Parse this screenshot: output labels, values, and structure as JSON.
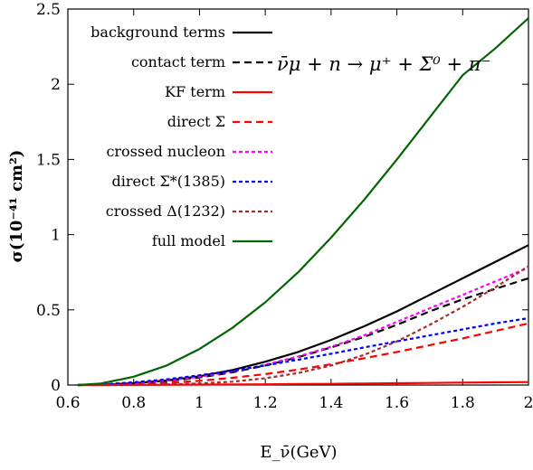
{
  "chart_data": {
    "type": "line",
    "reaction": "ν̄μ + n → μ⁺ + Σ⁰ + π⁻",
    "xlabel": "E_ν̄(GeV)",
    "ylabel": "σ(10⁻⁴¹ cm²)",
    "xlim": [
      0.6,
      2.0
    ],
    "ylim": [
      0,
      2.5
    ],
    "xticks": [
      "0.6",
      "0.8",
      "1",
      "1.2",
      "1.4",
      "1.6",
      "1.8",
      "2"
    ],
    "yticks": [
      "0",
      "0.5",
      "1",
      "1.5",
      "2",
      "2.5"
    ],
    "grid": false,
    "legend_position": "top-left",
    "x": [
      0.63,
      0.7,
      0.8,
      0.9,
      1.0,
      1.1,
      1.2,
      1.3,
      1.4,
      1.5,
      1.6,
      1.7,
      1.8,
      1.9,
      2.0
    ],
    "series": [
      {
        "name": "background terms",
        "color": "#000000",
        "dash": "solid",
        "values": [
          0.0,
          0.002,
          0.012,
          0.03,
          0.058,
          0.1,
          0.155,
          0.22,
          0.3,
          0.39,
          0.49,
          0.6,
          0.71,
          0.82,
          0.93
        ]
      },
      {
        "name": "contact term",
        "color": "#000000",
        "dash": "dashed",
        "values": [
          0.0,
          0.002,
          0.01,
          0.026,
          0.05,
          0.085,
          0.13,
          0.185,
          0.25,
          0.32,
          0.4,
          0.49,
          0.57,
          0.64,
          0.71
        ]
      },
      {
        "name": "KF term",
        "color": "#ff0000",
        "dash": "solid",
        "values": [
          0.0,
          0.0,
          0.001,
          0.002,
          0.003,
          0.004,
          0.005,
          0.007,
          0.008,
          0.01,
          0.012,
          0.014,
          0.016,
          0.018,
          0.02
        ]
      },
      {
        "name": "direct Σ",
        "color": "#ff0000",
        "dash": "dashed",
        "values": [
          0.0,
          0.001,
          0.005,
          0.013,
          0.028,
          0.048,
          0.073,
          0.103,
          0.138,
          0.178,
          0.22,
          0.265,
          0.31,
          0.36,
          0.41
        ]
      },
      {
        "name": "crossed nucleon",
        "color": "#ff00ff",
        "dash": "dotted",
        "values": [
          0.0,
          0.002,
          0.012,
          0.03,
          0.055,
          0.09,
          0.135,
          0.19,
          0.255,
          0.33,
          0.42,
          0.51,
          0.6,
          0.69,
          0.78
        ]
      },
      {
        "name": "direct Σ*(1385)",
        "color": "#0000ff",
        "dash": "dotted",
        "values": [
          0.0,
          0.004,
          0.018,
          0.038,
          0.065,
          0.095,
          0.13,
          0.168,
          0.208,
          0.25,
          0.29,
          0.33,
          0.37,
          0.41,
          0.445
        ]
      },
      {
        "name": "crossed Δ(1232)",
        "color": "#a52a2a",
        "dash": "dotted",
        "values": [
          0.0,
          0.0,
          0.001,
          0.004,
          0.01,
          0.022,
          0.045,
          0.08,
          0.13,
          0.2,
          0.29,
          0.4,
          0.52,
          0.65,
          0.79
        ]
      },
      {
        "name": "full model",
        "color": "#006400",
        "dash": "solid",
        "values": [
          0.0,
          0.01,
          0.055,
          0.13,
          0.24,
          0.38,
          0.55,
          0.75,
          0.98,
          1.23,
          1.5,
          1.78,
          2.06,
          2.24,
          2.44
        ]
      }
    ]
  }
}
